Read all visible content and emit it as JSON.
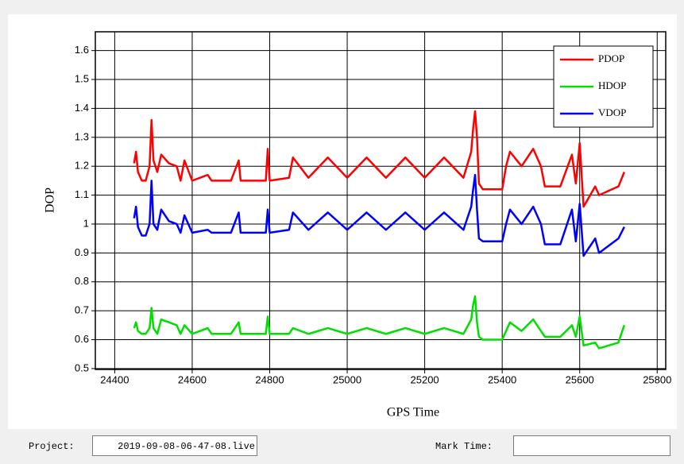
{
  "chart_data": {
    "type": "line",
    "xlabel": "GPS Time",
    "ylabel": "DOP",
    "x": [
      24450,
      24455,
      24460,
      24470,
      24480,
      24490,
      24495,
      24500,
      24510,
      24520,
      24540,
      24560,
      24570,
      24580,
      24600,
      24640,
      24650,
      24700,
      24720,
      24725,
      24790,
      24795,
      24800,
      24850,
      24860,
      24900,
      24950,
      25000,
      25050,
      25100,
      25150,
      25200,
      25250,
      25300,
      25320,
      25325,
      25330,
      25335,
      25340,
      25350,
      25400,
      25410,
      25420,
      25450,
      25480,
      25500,
      25510,
      25550,
      25580,
      25590,
      25600,
      25610,
      25640,
      25650,
      25700,
      25715
    ],
    "series": [
      {
        "name": "PDOP",
        "color": "#ff0000",
        "values": [
          1.21,
          1.25,
          1.18,
          1.15,
          1.15,
          1.2,
          1.36,
          1.22,
          1.18,
          1.24,
          1.21,
          1.2,
          1.15,
          1.22,
          1.15,
          1.17,
          1.15,
          1.15,
          1.22,
          1.15,
          1.15,
          1.26,
          1.15,
          1.16,
          1.23,
          1.16,
          1.23,
          1.16,
          1.23,
          1.16,
          1.23,
          1.16,
          1.23,
          1.16,
          1.25,
          1.33,
          1.39,
          1.3,
          1.14,
          1.12,
          1.12,
          1.2,
          1.25,
          1.2,
          1.26,
          1.2,
          1.13,
          1.13,
          1.24,
          1.14,
          1.28,
          1.06,
          1.13,
          1.1,
          1.13,
          1.18
        ]
      },
      {
        "name": "HDOP",
        "color": "#00e000",
        "values": [
          0.64,
          0.66,
          0.63,
          0.62,
          0.62,
          0.64,
          0.71,
          0.64,
          0.62,
          0.67,
          0.66,
          0.65,
          0.62,
          0.65,
          0.62,
          0.64,
          0.62,
          0.62,
          0.66,
          0.62,
          0.62,
          0.68,
          0.62,
          0.62,
          0.64,
          0.62,
          0.64,
          0.62,
          0.64,
          0.62,
          0.64,
          0.62,
          0.64,
          0.62,
          0.67,
          0.72,
          0.75,
          0.66,
          0.61,
          0.6,
          0.6,
          0.63,
          0.66,
          0.63,
          0.67,
          0.63,
          0.61,
          0.61,
          0.65,
          0.61,
          0.68,
          0.58,
          0.59,
          0.57,
          0.59,
          0.65
        ]
      },
      {
        "name": "VDOP",
        "color": "#0000ff",
        "values": [
          1.02,
          1.06,
          0.99,
          0.96,
          0.96,
          1.0,
          1.15,
          1.0,
          0.98,
          1.05,
          1.01,
          1.0,
          0.97,
          1.03,
          0.97,
          0.98,
          0.97,
          0.97,
          1.04,
          0.97,
          0.97,
          1.05,
          0.97,
          0.98,
          1.04,
          0.98,
          1.04,
          0.98,
          1.04,
          0.98,
          1.04,
          0.98,
          1.04,
          0.98,
          1.06,
          1.12,
          1.17,
          1.05,
          0.95,
          0.94,
          0.94,
          1.0,
          1.05,
          1.0,
          1.06,
          1.0,
          0.93,
          0.93,
          1.05,
          0.94,
          1.07,
          0.89,
          0.95,
          0.9,
          0.95,
          0.99
        ]
      }
    ],
    "xlim": [
      24350,
      25822
    ],
    "ylim": [
      0.497,
      1.665
    ],
    "xticks": [
      24400,
      24600,
      24800,
      25000,
      25200,
      25400,
      25600,
      25800
    ],
    "yticks": [
      0.5,
      0.6,
      0.7,
      0.8,
      0.9,
      1,
      1.1,
      1.2,
      1.3,
      1.4,
      1.5,
      1.6
    ],
    "grid": true,
    "legend": "upper right"
  },
  "footer": {
    "project_label": "Project:",
    "project_value": "2019-09-08-06-47-08.live",
    "mark_time_label": "Mark Time:"
  }
}
